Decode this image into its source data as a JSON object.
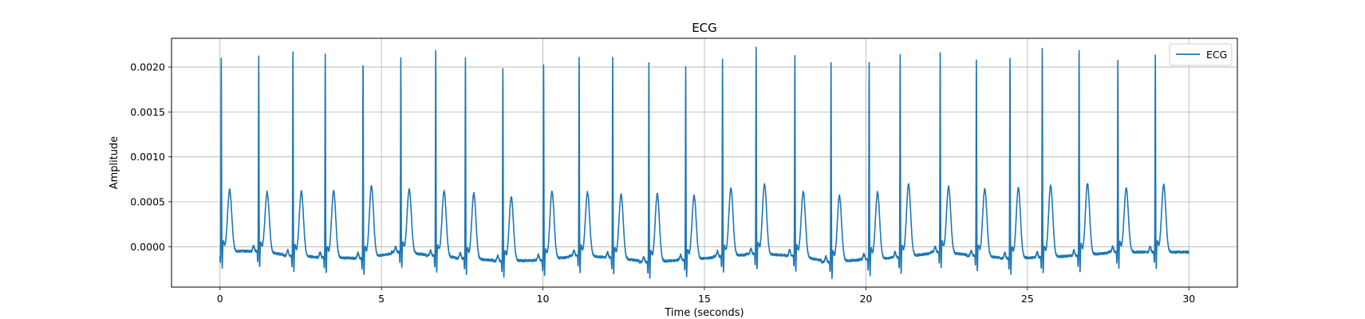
{
  "chart_data": {
    "type": "line",
    "title": "ECG",
    "xlabel": "Time (seconds)",
    "ylabel": "Amplitude",
    "xlim": [
      -1.5,
      31.5
    ],
    "ylim": [
      -0.00045,
      0.00232
    ],
    "x_ticks": [
      0,
      5,
      10,
      15,
      20,
      25,
      30
    ],
    "x_tick_labels": [
      "0",
      "5",
      "10",
      "15",
      "20",
      "25",
      "30"
    ],
    "y_ticks": [
      0.0,
      0.0005,
      0.001,
      0.0015,
      0.002
    ],
    "y_tick_labels": [
      "0.0000",
      "0.0005",
      "0.0010",
      "0.0015",
      "0.0020"
    ],
    "grid": true,
    "legend_position": "top-right",
    "series": [
      {
        "name": "ECG",
        "color": "#1f77b4",
        "sampling": "30 s trace, ~26 beats",
        "beats": [
          {
            "r_time": 0.04,
            "r_peak": 0.00209,
            "t_peak": 0.00063,
            "baseline": -5e-05
          },
          {
            "r_time": 1.2,
            "r_peak": 0.0021,
            "t_peak": 0.00062,
            "baseline": -5e-05
          },
          {
            "r_time": 2.26,
            "r_peak": 0.00215,
            "t_peak": 0.00062,
            "baseline": -0.0001
          },
          {
            "r_time": 3.26,
            "r_peak": 0.00212,
            "t_peak": 0.00062,
            "baseline": -0.00012
          },
          {
            "r_time": 4.43,
            "r_peak": 0.00207,
            "t_peak": 0.00066,
            "baseline": -0.00013
          },
          {
            "r_time": 5.6,
            "r_peak": 0.00209,
            "t_peak": 0.00065,
            "baseline": -6e-05
          },
          {
            "r_time": 6.68,
            "r_peak": 0.00217,
            "t_peak": 0.00063,
            "baseline": -0.0001
          },
          {
            "r_time": 7.6,
            "r_peak": 0.00209,
            "t_peak": 0.0006,
            "baseline": -0.00013
          },
          {
            "r_time": 8.76,
            "r_peak": 0.00197,
            "t_peak": 0.00055,
            "baseline": -0.00016
          },
          {
            "r_time": 10.02,
            "r_peak": 0.00202,
            "t_peak": 0.0006,
            "baseline": -0.00015
          },
          {
            "r_time": 11.12,
            "r_peak": 0.0021,
            "t_peak": 0.00061,
            "baseline": -0.0001
          },
          {
            "r_time": 12.16,
            "r_peak": 0.00209,
            "t_peak": 0.00059,
            "baseline": -0.00012
          },
          {
            "r_time": 13.28,
            "r_peak": 0.00202,
            "t_peak": 0.00058,
            "baseline": -0.00017
          },
          {
            "r_time": 14.42,
            "r_peak": 0.00198,
            "t_peak": 0.00056,
            "baseline": -0.00015
          },
          {
            "r_time": 15.56,
            "r_peak": 0.00208,
            "t_peak": 0.00064,
            "baseline": -0.00011
          },
          {
            "r_time": 16.6,
            "r_peak": 0.0022,
            "t_peak": 0.0007,
            "baseline": -8e-05
          },
          {
            "r_time": 17.8,
            "r_peak": 0.00212,
            "t_peak": 0.00063,
            "baseline": -0.0001
          },
          {
            "r_time": 18.92,
            "r_peak": 0.00204,
            "t_peak": 0.00056,
            "baseline": -0.00017
          },
          {
            "r_time": 20.1,
            "r_peak": 0.00204,
            "t_peak": 0.0006,
            "baseline": -0.00014
          },
          {
            "r_time": 21.06,
            "r_peak": 0.00213,
            "t_peak": 0.00068,
            "baseline": -0.00012
          },
          {
            "r_time": 22.3,
            "r_peak": 0.00214,
            "t_peak": 0.00068,
            "baseline": -6e-05
          },
          {
            "r_time": 23.42,
            "r_peak": 0.00206,
            "t_peak": 0.00065,
            "baseline": -0.0001
          },
          {
            "r_time": 24.46,
            "r_peak": 0.00209,
            "t_peak": 0.00065,
            "baseline": -0.00013
          },
          {
            "r_time": 25.46,
            "r_peak": 0.00218,
            "t_peak": 0.00067,
            "baseline": -0.00012
          },
          {
            "r_time": 26.6,
            "r_peak": 0.00216,
            "t_peak": 0.00069,
            "baseline": -0.0001
          },
          {
            "r_time": 27.8,
            "r_peak": 0.00206,
            "t_peak": 0.00065,
            "baseline": -6e-05
          },
          {
            "r_time": 28.96,
            "r_peak": 0.00213,
            "t_peak": 0.00069,
            "baseline": -6e-05
          }
        ],
        "x_end": 30.0
      }
    ]
  }
}
